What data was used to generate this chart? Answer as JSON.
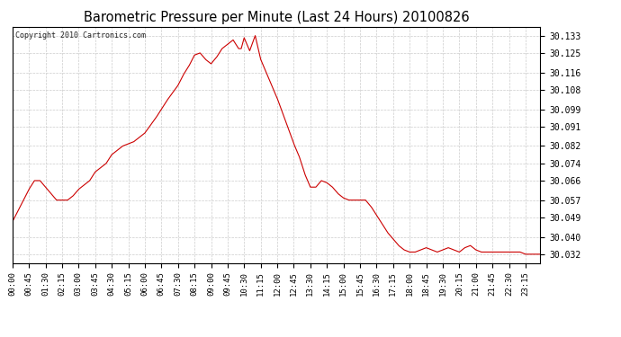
{
  "title": "Barometric Pressure per Minute (Last 24 Hours) 20100826",
  "copyright": "Copyright 2010 Cartronics.com",
  "line_color": "#cc0000",
  "background_color": "#ffffff",
  "grid_color": "#cccccc",
  "yticks": [
    30.032,
    30.04,
    30.049,
    30.057,
    30.066,
    30.074,
    30.082,
    30.091,
    30.099,
    30.108,
    30.116,
    30.125,
    30.133
  ],
  "ylim": [
    30.028,
    30.137
  ],
  "xtick_labels": [
    "00:00",
    "00:45",
    "01:30",
    "02:15",
    "03:00",
    "03:45",
    "04:30",
    "05:15",
    "06:00",
    "06:45",
    "07:30",
    "08:15",
    "09:00",
    "09:45",
    "10:30",
    "11:15",
    "12:00",
    "12:45",
    "13:30",
    "14:15",
    "15:00",
    "15:45",
    "16:30",
    "17:15",
    "18:00",
    "18:45",
    "19:30",
    "20:15",
    "21:00",
    "21:45",
    "22:30",
    "23:15"
  ],
  "key_points": [
    [
      0,
      30.047
    ],
    [
      30,
      30.057
    ],
    [
      45,
      30.062
    ],
    [
      60,
      30.066
    ],
    [
      75,
      30.066
    ],
    [
      90,
      30.063
    ],
    [
      105,
      30.06
    ],
    [
      120,
      30.057
    ],
    [
      135,
      30.057
    ],
    [
      150,
      30.057
    ],
    [
      165,
      30.059
    ],
    [
      180,
      30.062
    ],
    [
      210,
      30.066
    ],
    [
      225,
      30.07
    ],
    [
      240,
      30.072
    ],
    [
      255,
      30.074
    ],
    [
      270,
      30.078
    ],
    [
      285,
      30.08
    ],
    [
      300,
      30.082
    ],
    [
      315,
      30.083
    ],
    [
      330,
      30.084
    ],
    [
      345,
      30.086
    ],
    [
      360,
      30.088
    ],
    [
      390,
      30.095
    ],
    [
      420,
      30.103
    ],
    [
      450,
      30.11
    ],
    [
      465,
      30.115
    ],
    [
      480,
      30.119
    ],
    [
      495,
      30.124
    ],
    [
      510,
      30.125
    ],
    [
      525,
      30.122
    ],
    [
      540,
      30.12
    ],
    [
      555,
      30.123
    ],
    [
      570,
      30.127
    ],
    [
      585,
      30.129
    ],
    [
      600,
      30.131
    ],
    [
      615,
      30.127
    ],
    [
      622,
      30.127
    ],
    [
      630,
      30.132
    ],
    [
      645,
      30.126
    ],
    [
      660,
      30.133
    ],
    [
      675,
      30.122
    ],
    [
      690,
      30.116
    ],
    [
      705,
      30.11
    ],
    [
      720,
      30.104
    ],
    [
      735,
      30.097
    ],
    [
      750,
      30.09
    ],
    [
      765,
      30.083
    ],
    [
      780,
      30.077
    ],
    [
      795,
      30.069
    ],
    [
      810,
      30.063
    ],
    [
      825,
      30.063
    ],
    [
      840,
      30.066
    ],
    [
      855,
      30.065
    ],
    [
      870,
      30.063
    ],
    [
      885,
      30.06
    ],
    [
      900,
      30.058
    ],
    [
      915,
      30.057
    ],
    [
      930,
      30.057
    ],
    [
      945,
      30.057
    ],
    [
      960,
      30.057
    ],
    [
      975,
      30.054
    ],
    [
      990,
      30.05
    ],
    [
      1005,
      30.046
    ],
    [
      1020,
      30.042
    ],
    [
      1035,
      30.039
    ],
    [
      1050,
      30.036
    ],
    [
      1065,
      30.034
    ],
    [
      1080,
      30.033
    ],
    [
      1095,
      30.033
    ],
    [
      1110,
      30.034
    ],
    [
      1125,
      30.035
    ],
    [
      1140,
      30.034
    ],
    [
      1155,
      30.033
    ],
    [
      1170,
      30.034
    ],
    [
      1185,
      30.035
    ],
    [
      1200,
      30.034
    ],
    [
      1215,
      30.033
    ],
    [
      1230,
      30.035
    ],
    [
      1245,
      30.036
    ],
    [
      1260,
      30.034
    ],
    [
      1275,
      30.033
    ],
    [
      1290,
      30.033
    ],
    [
      1305,
      30.033
    ],
    [
      1320,
      30.033
    ],
    [
      1350,
      30.033
    ],
    [
      1380,
      30.033
    ],
    [
      1395,
      30.032
    ],
    [
      1415,
      30.032
    ],
    [
      1435,
      30.032
    ]
  ]
}
